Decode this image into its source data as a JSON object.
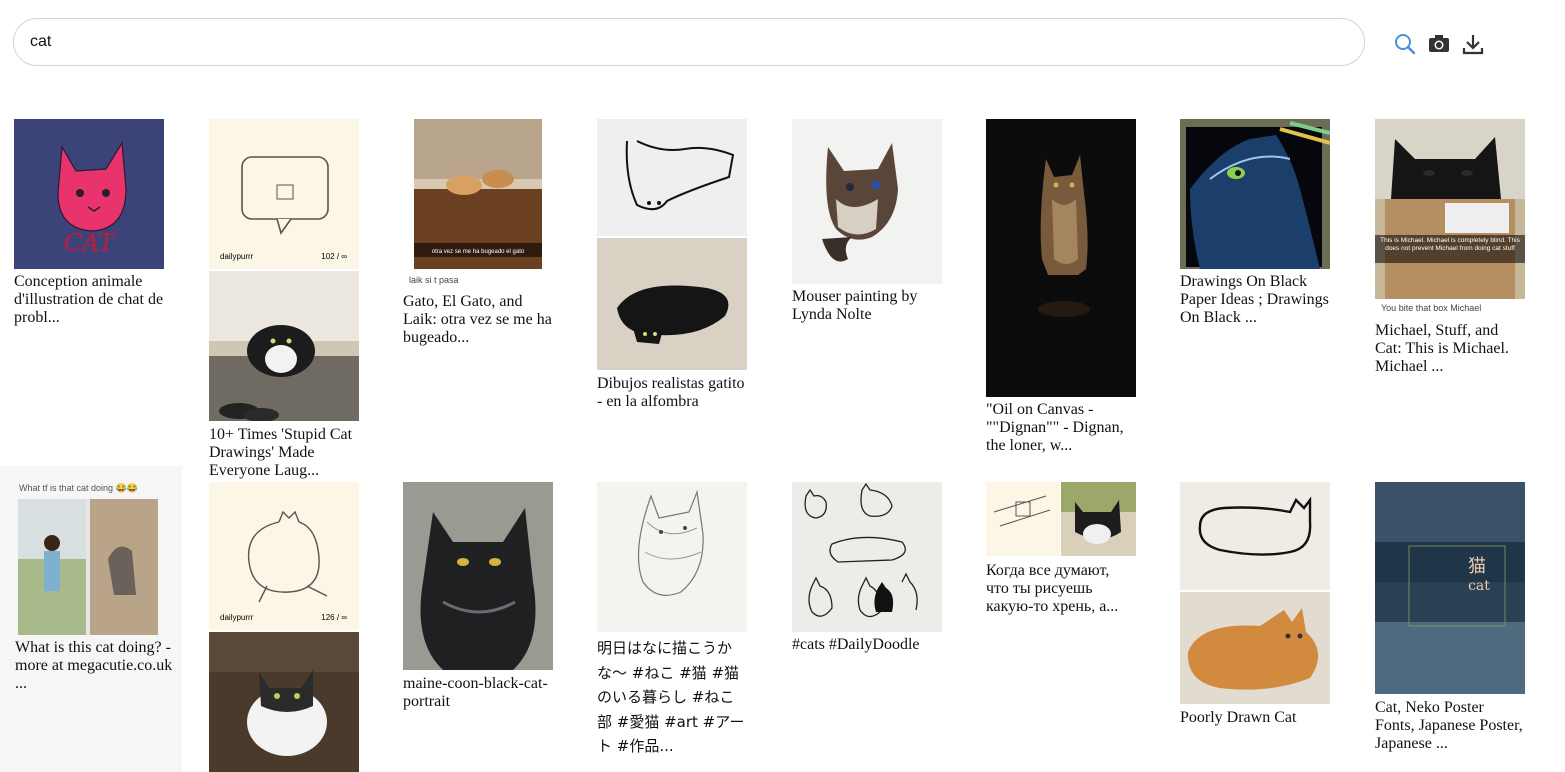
{
  "search": {
    "value": "cat",
    "placeholder": ""
  },
  "toolbar": {
    "search_icon": "search-icon",
    "camera_icon": "camera-icon",
    "download_icon": "download-icon",
    "accent": "#4a90d9"
  },
  "results": [
    {
      "caption": "Conception animale d'illustration de chat de probl...",
      "image_text": "CAT"
    },
    {
      "caption": "10+ Times 'Stupid Cat Drawings' Made Everyone Laug...",
      "image_text": "dailypurrr",
      "image_count": "102 / ∞"
    },
    {
      "caption": "Gato, El Gato, and Laik: otra vez se me ha bugeado...",
      "image_text": "otra vez se me ha bugeado el gato",
      "image_subtext": "laik si t pasa"
    },
    {
      "caption": "Dibujos realistas gatito - en la alfombra"
    },
    {
      "caption": "Mouser painting by Lynda Nolte"
    },
    {
      "caption": "\"Oil on Canvas - \"\"Dignan\"\" - Dignan, the loner, w..."
    },
    {
      "caption": "Drawings On Black Paper Ideas ; Drawings On Black ..."
    },
    {
      "caption": "Michael, Stuff, and Cat: This is Michael. Michael ...",
      "image_text": "This is Michael. Michael is completely blind. This does not prevent Michael from doing cat stuff",
      "image_subtext": "You bite that box Michael"
    },
    {
      "caption": "What is this cat doing? - more at megacutie.co.uk ...",
      "image_text": "What tf is that cat doing 😂😂"
    },
    {
      "caption": "",
      "image_text": "dailypurrr",
      "image_count": "126 / ∞"
    },
    {
      "caption": "maine-coon-black-cat-portrait"
    },
    {
      "caption": "明日はなに描こうかな〜 #ねこ #猫 #猫のいる暮らし #ねこ部 #愛猫 #art #アート #作品..."
    },
    {
      "caption": "#cats #DailyDoodle"
    },
    {
      "caption": "Когда все думают, что ты рисуешь какую-то хрень, а..."
    },
    {
      "caption": "Poorly Drawn Cat"
    },
    {
      "caption": "Cat, Neko Poster Fonts, Japanese Poster, Japanese ...",
      "image_text": "猫",
      "image_subtext": "cat"
    }
  ]
}
